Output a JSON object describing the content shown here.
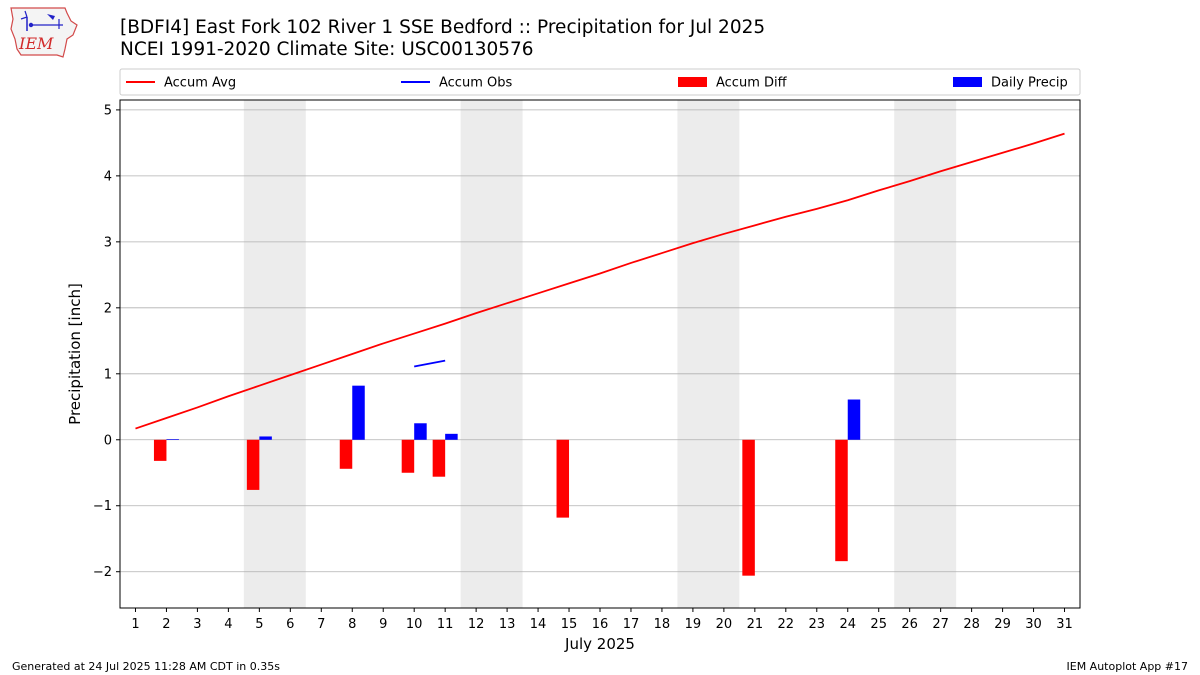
{
  "header": {
    "title_line1": "[BDFI4] East Fork 102 River 1 SSE Bedford :: Precipitation for Jul 2025",
    "title_line2": "NCEI 1991-2020 Climate Site: USC00130576",
    "logo_text": "IEM"
  },
  "footer": {
    "generated": "Generated at 24 Jul 2025 11:28 AM CDT in 0.35s",
    "app": "IEM Autoplot App #17"
  },
  "chart_data": {
    "type": "bar",
    "xlabel": "July 2025",
    "ylabel": "Precipitation [inch]",
    "xlim": [
      0.5,
      31.5
    ],
    "ylim": [
      -2.55,
      5.15
    ],
    "yticks": [
      -2,
      -1,
      0,
      1,
      2,
      3,
      4,
      5
    ],
    "ytick_labels": [
      "−2",
      "−1",
      "0",
      "1",
      "2",
      "3",
      "4",
      "5"
    ],
    "xticks": [
      1,
      2,
      3,
      4,
      5,
      6,
      7,
      8,
      9,
      10,
      11,
      12,
      13,
      14,
      15,
      16,
      17,
      18,
      19,
      20,
      21,
      22,
      23,
      24,
      25,
      26,
      27,
      28,
      29,
      30,
      31
    ],
    "grid": "horizontal",
    "weekend_shading": [
      [
        4.5,
        6.5
      ],
      [
        11.5,
        13.5
      ],
      [
        18.5,
        20.5
      ],
      [
        25.5,
        27.5
      ]
    ],
    "legend_position": "top",
    "colors": {
      "avg": "#ff0000",
      "obs": "#0000ff",
      "diff": "#ff0000",
      "daily": "#0000ff",
      "weekend": "#ececec",
      "grid": "#b0b0b0"
    },
    "series": [
      {
        "name": "Accum Avg",
        "kind": "line",
        "color": "#ff0000",
        "x": [
          1,
          2,
          3,
          4,
          5,
          6,
          7,
          8,
          9,
          10,
          11,
          12,
          13,
          14,
          15,
          16,
          17,
          18,
          19,
          20,
          21,
          22,
          23,
          24,
          25,
          26,
          27,
          28,
          29,
          30,
          31
        ],
        "values": [
          0.17,
          0.33,
          0.49,
          0.66,
          0.82,
          0.98,
          1.14,
          1.3,
          1.46,
          1.61,
          1.76,
          1.92,
          2.07,
          2.22,
          2.37,
          2.52,
          2.68,
          2.83,
          2.98,
          3.12,
          3.25,
          3.38,
          3.5,
          3.63,
          3.78,
          3.92,
          4.07,
          4.21,
          4.35,
          4.49,
          4.64
        ]
      },
      {
        "name": "Accum Obs",
        "kind": "line",
        "color": "#0000ff",
        "x": [
          10,
          11
        ],
        "values": [
          1.11,
          1.2
        ]
      },
      {
        "name": "Accum Diff",
        "kind": "bar",
        "color": "#ff0000",
        "x": [
          2,
          5,
          8,
          10,
          11,
          15,
          21,
          24
        ],
        "values": [
          -0.32,
          -0.76,
          -0.44,
          -0.5,
          -0.56,
          -1.18,
          -2.06,
          -1.84
        ]
      },
      {
        "name": "Daily Precip",
        "kind": "bar",
        "color": "#0000ff",
        "x": [
          2,
          5,
          8,
          10,
          11,
          24
        ],
        "values": [
          0.01,
          0.05,
          0.82,
          0.25,
          0.09,
          0.61
        ]
      }
    ]
  }
}
